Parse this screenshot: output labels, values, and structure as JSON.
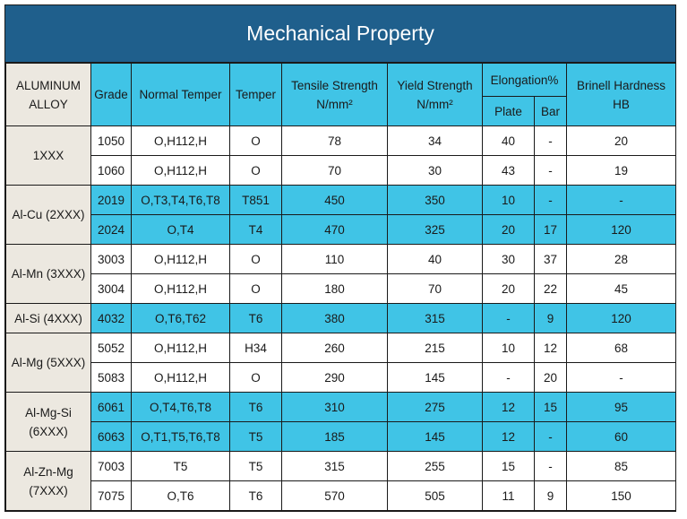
{
  "title": "Mechanical Property",
  "headers": {
    "alloy": "ALUMINUM ALLOY",
    "grade": "Grade",
    "normal_temper": "Normal Temper",
    "temper": "Temper",
    "tensile": "Tensile Strength N/mm²",
    "yield": "Yield Strength N/mm²",
    "elongation": "Elongation%",
    "plate": "Plate",
    "bar": "Bar",
    "brinell": "Brinell Hardness HB"
  },
  "groups": [
    {
      "alloy": "1XXX",
      "highlight": false,
      "rows": [
        {
          "grade": "1050",
          "normal_temper": "O,H112,H",
          "temper": "O",
          "tensile": "78",
          "yield": "34",
          "plate": "40",
          "bar": "-",
          "hb": "20"
        },
        {
          "grade": "1060",
          "normal_temper": "O,H112,H",
          "temper": "O",
          "tensile": "70",
          "yield": "30",
          "plate": "43",
          "bar": "-",
          "hb": "19"
        }
      ]
    },
    {
      "alloy": "Al-Cu (2XXX)",
      "highlight": true,
      "rows": [
        {
          "grade": "2019",
          "normal_temper": "O,T3,T4,T6,T8",
          "temper": "T851",
          "tensile": "450",
          "yield": "350",
          "plate": "10",
          "bar": "-",
          "hb": "-"
        },
        {
          "grade": "2024",
          "normal_temper": "O,T4",
          "temper": "T4",
          "tensile": "470",
          "yield": "325",
          "plate": "20",
          "bar": "17",
          "hb": "120"
        }
      ]
    },
    {
      "alloy": "Al-Mn (3XXX)",
      "highlight": false,
      "rows": [
        {
          "grade": "3003",
          "normal_temper": "O,H112,H",
          "temper": "O",
          "tensile": "110",
          "yield": "40",
          "plate": "30",
          "bar": "37",
          "hb": "28"
        },
        {
          "grade": "3004",
          "normal_temper": "O,H112,H",
          "temper": "O",
          "tensile": "180",
          "yield": "70",
          "plate": "20",
          "bar": "22",
          "hb": "45"
        }
      ]
    },
    {
      "alloy": "Al-Si (4XXX)",
      "highlight": true,
      "rows": [
        {
          "grade": "4032",
          "normal_temper": "O,T6,T62",
          "temper": "T6",
          "tensile": "380",
          "yield": "315",
          "plate": "-",
          "bar": "9",
          "hb": "120"
        }
      ]
    },
    {
      "alloy": "Al-Mg (5XXX)",
      "highlight": false,
      "rows": [
        {
          "grade": "5052",
          "normal_temper": "O,H112,H",
          "temper": "H34",
          "tensile": "260",
          "yield": "215",
          "plate": "10",
          "bar": "12",
          "hb": "68"
        },
        {
          "grade": "5083",
          "normal_temper": "O,H112,H",
          "temper": "O",
          "tensile": "290",
          "yield": "145",
          "plate": "-",
          "bar": "20",
          "hb": "-"
        }
      ]
    },
    {
      "alloy": "Al-Mg-Si (6XXX)",
      "highlight": true,
      "rows": [
        {
          "grade": "6061",
          "normal_temper": "O,T4,T6,T8",
          "temper": "T6",
          "tensile": "310",
          "yield": "275",
          "plate": "12",
          "bar": "15",
          "hb": "95"
        },
        {
          "grade": "6063",
          "normal_temper": "O,T1,T5,T6,T8",
          "temper": "T5",
          "tensile": "185",
          "yield": "145",
          "plate": "12",
          "bar": "-",
          "hb": "60"
        }
      ]
    },
    {
      "alloy": "Al-Zn-Mg (7XXX)",
      "highlight": false,
      "rows": [
        {
          "grade": "7003",
          "normal_temper": "T5",
          "temper": "T5",
          "tensile": "315",
          "yield": "255",
          "plate": "15",
          "bar": "-",
          "hb": "85"
        },
        {
          "grade": "7075",
          "normal_temper": "O,T6",
          "temper": "T6",
          "tensile": "570",
          "yield": "505",
          "plate": "11",
          "bar": "9",
          "hb": "150"
        }
      ]
    }
  ]
}
